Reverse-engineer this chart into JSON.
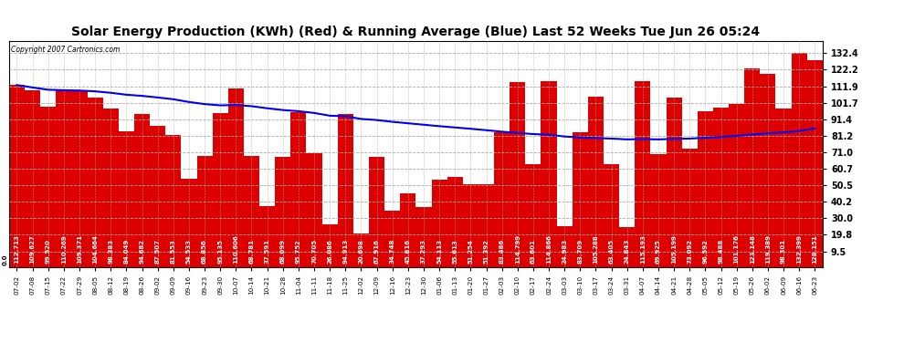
{
  "title": "Solar Energy Production (KWh) (Red) & Running Average (Blue) Last 52 Weeks Tue Jun 26 05:24",
  "copyright": "Copyright 2007 Cartronics.com",
  "bar_color": "#dd0000",
  "line_color": "#0000ee",
  "background_color": "#ffffff",
  "plot_bg_color": "#ffffff",
  "grid_color": "#aaaaaa",
  "yticks": [
    9.5,
    19.8,
    30.0,
    40.2,
    50.5,
    60.7,
    71.0,
    81.2,
    91.4,
    101.7,
    111.9,
    122.2,
    132.4
  ],
  "xlabels": [
    "07-02",
    "07-08",
    "07-15",
    "07-22",
    "07-29",
    "08-05",
    "08-12",
    "08-19",
    "08-26",
    "09-02",
    "09-09",
    "09-16",
    "09-23",
    "09-30",
    "10-07",
    "10-14",
    "10-21",
    "10-28",
    "11-04",
    "11-11",
    "11-18",
    "11-25",
    "12-02",
    "12-09",
    "12-16",
    "12-23",
    "12-30",
    "01-06",
    "01-13",
    "01-20",
    "01-27",
    "02-03",
    "02-10",
    "02-17",
    "02-24",
    "03-03",
    "03-10",
    "03-17",
    "03-24",
    "03-31",
    "04-07",
    "04-14",
    "04-21",
    "04-28",
    "05-05",
    "05-12",
    "05-19",
    "05-26",
    "06-02",
    "06-09",
    "06-16",
    "06-23"
  ],
  "bar_values": [
    112.713,
    109.627,
    99.52,
    110.269,
    109.371,
    104.664,
    98.383,
    84.049,
    94.682,
    87.507,
    81.553,
    54.533,
    68.856,
    95.135,
    110.606,
    68.781,
    37.591,
    68.099,
    95.752,
    70.705,
    26.086,
    94.913,
    20.698,
    67.916,
    34.748,
    45.816,
    37.293,
    54.113,
    55.613,
    51.254,
    51.392,
    83.486,
    114.799,
    63.601,
    114.866,
    24.983,
    83.709,
    105.288,
    63.405,
    24.843,
    115.193,
    69.925,
    105.199,
    73.092,
    96.592,
    98.488,
    101.176,
    123.148,
    119.389,
    98.301,
    132.399,
    128.151
  ],
  "avg_values": [
    112.7,
    111.2,
    109.8,
    109.5,
    109.3,
    108.8,
    107.9,
    106.7,
    106.0,
    105.0,
    103.9,
    102.2,
    100.9,
    100.1,
    100.3,
    99.6,
    98.3,
    97.2,
    96.5,
    95.4,
    93.7,
    93.3,
    91.7,
    91.0,
    89.9,
    89.0,
    88.1,
    87.2,
    86.4,
    85.6,
    84.7,
    83.8,
    83.0,
    82.3,
    81.9,
    80.8,
    80.2,
    79.8,
    79.5,
    79.0,
    79.2,
    79.0,
    79.3,
    79.5,
    80.0,
    80.5,
    81.2,
    82.0,
    82.8,
    83.3,
    84.2,
    85.8
  ],
  "ymin": 0.0,
  "ymax": 140.0,
  "label_fontsize": 5.0,
  "tick_fontsize": 7.0,
  "title_fontsize": 10.0
}
